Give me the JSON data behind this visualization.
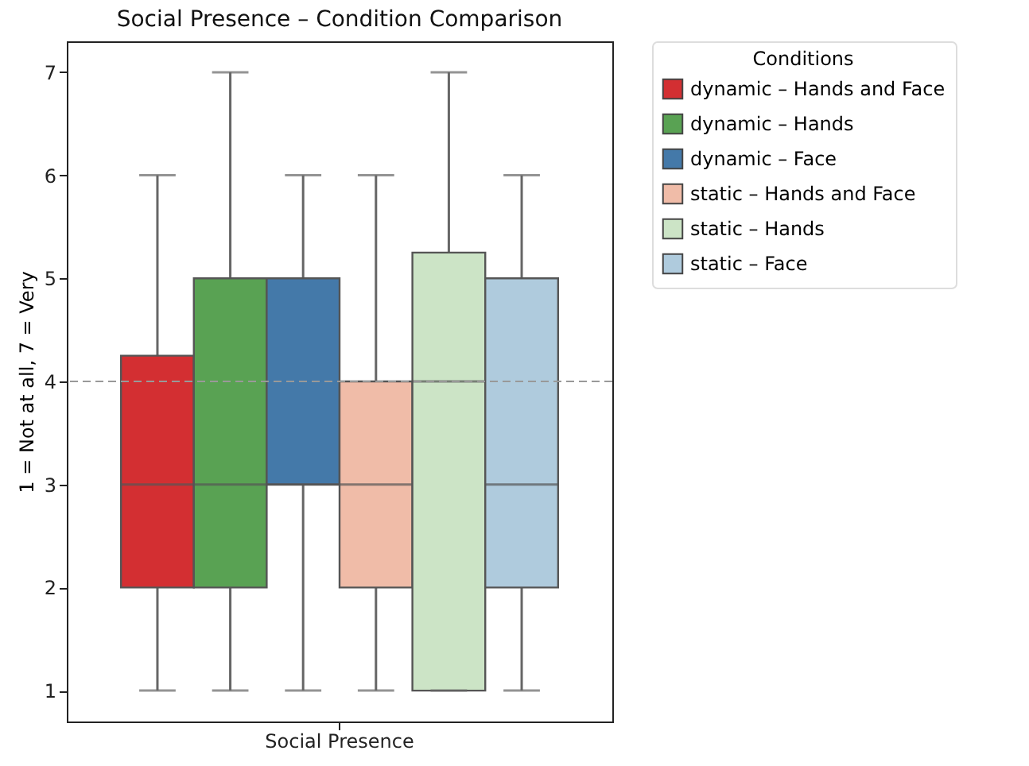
{
  "chart_data": {
    "type": "box",
    "title": "Social Presence – Condition Comparison",
    "ylabel": "1 = Not at all, 7 = Very",
    "legend_title": "Conditions",
    "legend": "top right",
    "categories": [
      "Social Presence"
    ],
    "series": [
      {
        "name": "dynamic – Hands and Face",
        "color": "#d32f32",
        "boxes": [
          {
            "low": 1,
            "q1": 2,
            "median": 3,
            "q3": 4.25,
            "high": 6
          }
        ]
      },
      {
        "name": "dynamic – Hands",
        "color": "#59a253",
        "boxes": [
          {
            "low": 1,
            "q1": 2,
            "median": 3,
            "q3": 5,
            "high": 7
          }
        ]
      },
      {
        "name": "dynamic – Face",
        "color": "#4479a9",
        "boxes": [
          {
            "low": 1,
            "q1": 3,
            "median": 3,
            "q3": 5,
            "high": 6
          }
        ]
      },
      {
        "name": "static – Hands and Face",
        "color": "#f0bca8",
        "boxes": [
          {
            "low": 1,
            "q1": 2,
            "median": 3,
            "q3": 4,
            "high": 6
          }
        ]
      },
      {
        "name": "static – Hands",
        "color": "#cce4c6",
        "boxes": [
          {
            "low": 1,
            "q1": 1,
            "median": 4,
            "q3": 5.25,
            "high": 7
          }
        ]
      },
      {
        "name": "static – Face",
        "color": "#afcbdd",
        "boxes": [
          {
            "low": 1,
            "q1": 2,
            "median": 3,
            "q3": 5,
            "high": 6
          }
        ]
      }
    ],
    "ylim": [
      0.7,
      7.3
    ],
    "yticks": [
      1,
      2,
      3,
      4,
      5,
      6,
      7
    ],
    "ref_lines": [
      {
        "axis": "y",
        "value": 4,
        "color": "#999999",
        "line_style": "dashed"
      }
    ]
  }
}
